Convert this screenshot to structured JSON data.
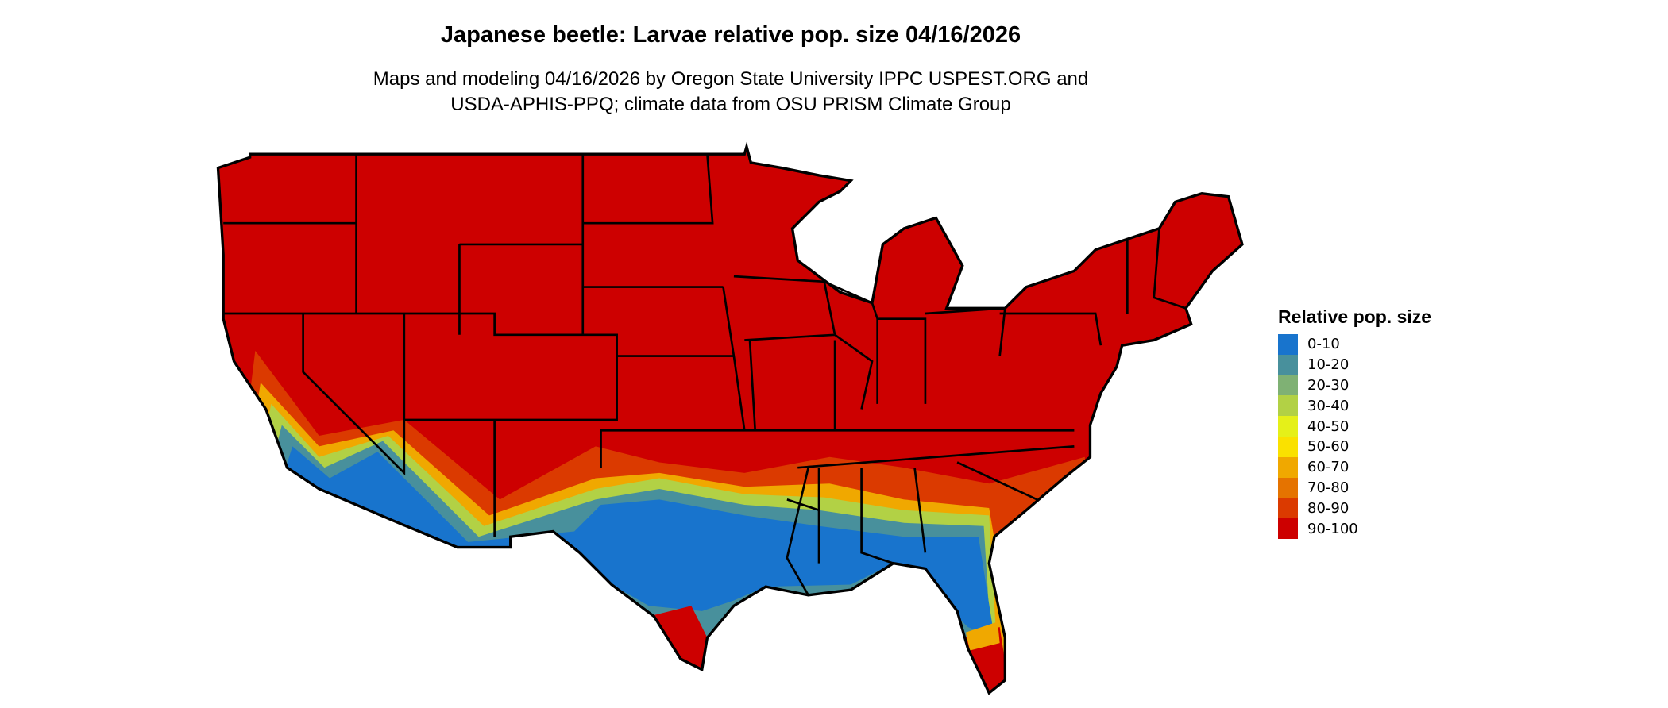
{
  "title": "Japanese beetle: Larvae relative pop. size 04/16/2026",
  "subtitle_line1": "Maps and modeling 04/16/2026 by Oregon State University IPPC USPEST.ORG and",
  "subtitle_line2": "USDA-APHIS-PPQ; climate data from OSU PRISM Climate Group",
  "legend": {
    "title": "Relative pop. size",
    "items": [
      {
        "label": "0-10",
        "color": "#1874CD"
      },
      {
        "label": "10-20",
        "color": "#48909C"
      },
      {
        "label": "20-30",
        "color": "#7FB174"
      },
      {
        "label": "30-40",
        "color": "#B2D145"
      },
      {
        "label": "40-50",
        "color": "#E5F019"
      },
      {
        "label": "50-60",
        "color": "#FAE100"
      },
      {
        "label": "60-70",
        "color": "#F0A800"
      },
      {
        "label": "70-80",
        "color": "#E57300"
      },
      {
        "label": "80-90",
        "color": "#DB3A00"
      },
      {
        "label": "90-100",
        "color": "#CD0000"
      }
    ]
  }
}
